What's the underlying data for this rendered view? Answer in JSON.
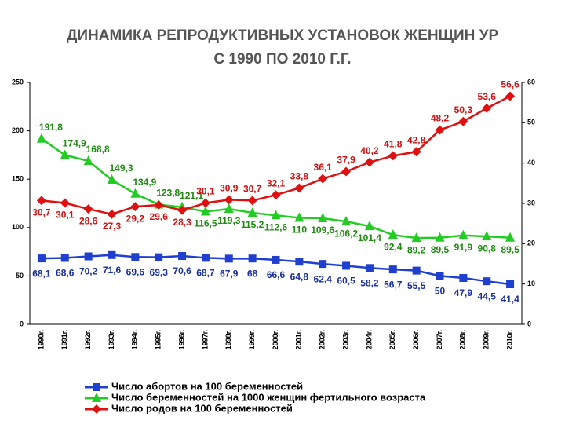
{
  "chart_data": {
    "type": "line",
    "title": [
      "ДИНАМИКА РЕПРОДУКТИВНЫХ УСТАНОВОК ЖЕНЩИН УР",
      "С 1990 ПО 2010 Г.Г."
    ],
    "categories": [
      "1990г.",
      "1991г.",
      "1992г.",
      "1993г.",
      "1994г.",
      "1995г.",
      "1996г.",
      "1997г.",
      "1998г.",
      "1999г.",
      "2000г.",
      "2001г.",
      "2002г.",
      "2003г.",
      "2004г.",
      "2005г.",
      "2006г.",
      "2007г.",
      "2008г.",
      "2009г.",
      "2010г."
    ],
    "ylim": [
      0,
      250
    ],
    "yticks": [
      0,
      50,
      100,
      150,
      200,
      250
    ],
    "y2lim": [
      0,
      60
    ],
    "y2ticks": [
      0,
      10,
      20,
      30,
      40,
      50,
      60
    ],
    "grid": false,
    "series": [
      {
        "name": "Число абортов на 100 беременностей",
        "color": "#1f3fd0",
        "marker": "square",
        "values": [
          68.1,
          68.6,
          70.2,
          71.6,
          69.6,
          69.3,
          70.6,
          68.7,
          67.9,
          68,
          66.6,
          64.8,
          62.4,
          60.5,
          58.2,
          56.7,
          55.5,
          50,
          47.9,
          44.5,
          41.4
        ],
        "value_labels": [
          "68,1",
          "68,6",
          "70,2",
          "71,6",
          "69,6",
          "69,3",
          "70,6",
          "68,7",
          "67,9",
          "68",
          "66,6",
          "64,8",
          "62,4",
          "60,5",
          "58,2",
          "56,7",
          "55,5",
          "50",
          "47,9",
          "44,5",
          "41,4"
        ]
      },
      {
        "name": "Число беременностей на 1000 женщин фертильного возраста",
        "color": "#22cc22",
        "marker": "triangle",
        "values": [
          191.8,
          174.9,
          168.8,
          149.3,
          134.9,
          123.8,
          121.1,
          116.5,
          119.3,
          115.2,
          112.6,
          110,
          109.6,
          106.2,
          101.4,
          92.4,
          89.2,
          89.5,
          91.9,
          90.8,
          89.5
        ],
        "value_labels": [
          "191,8",
          "174,9",
          "168,8",
          "149,3",
          "134,9",
          "123,8",
          "121,1",
          "116,5",
          "119,3",
          "115,2",
          "112,6",
          "110",
          "109,6",
          "106,2",
          "101,4",
          "92,4",
          "89,2",
          "89,5",
          "91,9",
          "90,8",
          "89,5"
        ]
      },
      {
        "name": "Число родов  на 100 беременностей",
        "color": "#e01010",
        "marker": "diamond",
        "axis": "y2",
        "values": [
          30.7,
          30.1,
          28.6,
          27.3,
          29.2,
          29.6,
          28.3,
          30.1,
          30.9,
          30.7,
          32.1,
          33.8,
          36.1,
          37.9,
          40.2,
          41.8,
          42.8,
          48.2,
          50.3,
          53.6,
          56.6
        ],
        "value_labels": [
          "30,7",
          "30,1",
          "28,6",
          "27,3",
          "29,2",
          "29,6",
          "28,3",
          "30,1",
          "30,9",
          "30,7",
          "32,1",
          "33,8",
          "36,1",
          "37,9",
          "40,2",
          "41,8",
          "42,8",
          "48,2",
          "50,3",
          "53,6",
          "56,6"
        ]
      }
    ]
  }
}
